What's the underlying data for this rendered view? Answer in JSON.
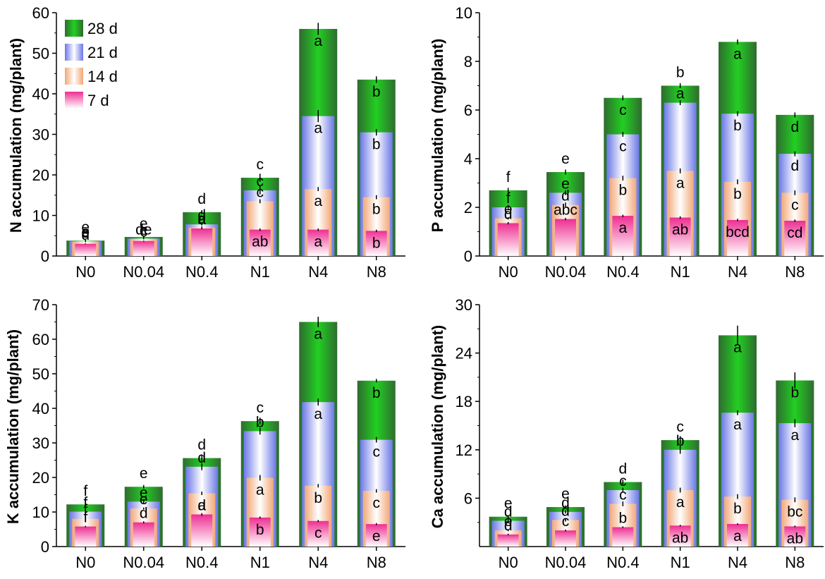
{
  "colors": {
    "d28_dark": "#2f6b2f",
    "d28_light": "#22d022",
    "d21_dark": "#6b78e6",
    "d21_light": "#ffffff",
    "d14_dark": "#f2a878",
    "d14_light": "#ffffff",
    "d7_dark": "#ee2f92",
    "d7_light": "#ffffff"
  },
  "legend": {
    "items": [
      {
        "label": "28 d",
        "stage": "d28"
      },
      {
        "label": "21 d",
        "stage": "d21"
      },
      {
        "label": "14 d",
        "stage": "d14"
      },
      {
        "label": "7 d",
        "stage": "d7"
      }
    ]
  },
  "chart_data": [
    {
      "type": "bar",
      "stacked": false,
      "title": "",
      "ylabel": "N accumulation (mg/plant)",
      "xlabel": "",
      "categories": [
        "N0",
        "N0.04",
        "N0.4",
        "N1",
        "N4",
        "N8"
      ],
      "ylim": [
        0,
        60
      ],
      "yticks": [
        0,
        10,
        20,
        30,
        40,
        50,
        60
      ],
      "series": [
        {
          "name": "28 d",
          "values": [
            3.8,
            4.7,
            10.8,
            19.3,
            56.0,
            43.5
          ],
          "errors": [
            0.2,
            0.2,
            0.5,
            1.0,
            1.5,
            0.8
          ],
          "letters": [
            "e",
            "e",
            "d",
            "c",
            "a",
            "b"
          ]
        },
        {
          "name": "21 d",
          "values": [
            3.7,
            4.3,
            7.8,
            16.2,
            34.5,
            30.5
          ],
          "errors": [
            0.2,
            0.2,
            0.3,
            1.0,
            1.5,
            0.8
          ],
          "letters": [
            "e",
            "de",
            "d",
            "c",
            "a",
            "b"
          ]
        },
        {
          "name": "14 d",
          "values": [
            3.5,
            4.2,
            7.0,
            13.5,
            16.5,
            14.5
          ],
          "errors": [
            0.1,
            0.1,
            0.3,
            0.5,
            0.5,
            0.5
          ],
          "letters": [
            "e",
            "e",
            "d",
            "c",
            "a",
            "b"
          ]
        },
        {
          "name": "7 d",
          "values": [
            3.0,
            3.7,
            6.8,
            6.5,
            6.5,
            6.2
          ],
          "errors": [
            0.1,
            0.1,
            0.2,
            0.3,
            0.3,
            0.3
          ],
          "letters": [
            "d",
            "c",
            "a",
            "ab",
            "a",
            "b"
          ]
        }
      ]
    },
    {
      "type": "bar",
      "stacked": false,
      "title": "",
      "ylabel": "P accumulation (mg/plant)",
      "xlabel": "",
      "categories": [
        "N0",
        "N0.04",
        "N0.4",
        "N1",
        "N4",
        "N8"
      ],
      "ylim": [
        0,
        10
      ],
      "yticks": [
        0,
        2,
        4,
        6,
        8,
        10
      ],
      "series": [
        {
          "name": "28 d",
          "values": [
            2.7,
            3.45,
            6.5,
            7.0,
            8.8,
            5.8
          ],
          "errors": [
            0.1,
            0.1,
            0.1,
            0.1,
            0.1,
            0.1
          ],
          "letters": [
            "f",
            "e",
            "c",
            "b",
            "a",
            "d"
          ]
        },
        {
          "name": "21 d",
          "values": [
            2.0,
            2.6,
            5.0,
            6.3,
            5.85,
            4.2
          ],
          "errors": [
            0.1,
            0.1,
            0.1,
            0.1,
            0.1,
            0.1
          ],
          "letters": [
            "f",
            "e",
            "c",
            "a",
            "b",
            "d"
          ]
        },
        {
          "name": "14 d",
          "values": [
            1.55,
            2.1,
            3.2,
            3.5,
            3.05,
            2.6
          ],
          "errors": [
            0.05,
            0.1,
            0.1,
            0.1,
            0.1,
            0.1
          ],
          "letters": [
            "e",
            "d",
            "b",
            "a",
            "b",
            "c"
          ]
        },
        {
          "name": "7 d",
          "values": [
            1.35,
            1.52,
            1.65,
            1.58,
            1.48,
            1.45
          ],
          "errors": [
            0.05,
            0.05,
            0.05,
            0.05,
            0.05,
            0.05
          ],
          "letters": [
            "d",
            "abc",
            "a",
            "ab",
            "bcd",
            "cd"
          ]
        }
      ]
    },
    {
      "type": "bar",
      "stacked": false,
      "title": "",
      "ylabel": "K accumulation (mg/plant)",
      "xlabel": "",
      "categories": [
        "N0",
        "N0.04",
        "N0.4",
        "N1",
        "N4",
        "N8"
      ],
      "ylim": [
        0,
        70
      ],
      "yticks": [
        0,
        10,
        20,
        30,
        40,
        50,
        60,
        70
      ],
      "series": [
        {
          "name": "28 d",
          "values": [
            12.2,
            17.3,
            25.6,
            36.3,
            65.0,
            48.0
          ],
          "errors": [
            0.5,
            0.5,
            1.0,
            1.0,
            1.5,
            0.5
          ],
          "letters": [
            "f",
            "e",
            "d",
            "c",
            "a",
            "b"
          ]
        },
        {
          "name": "21 d",
          "values": [
            10.1,
            13.0,
            23.1,
            33.4,
            41.8,
            30.9
          ],
          "errors": [
            0.5,
            0.5,
            1.0,
            1.0,
            1.0,
            0.8
          ],
          "letters": [
            "f",
            "e",
            "d",
            "b",
            "a",
            "c"
          ]
        },
        {
          "name": "14 d",
          "values": [
            8.0,
            11.0,
            15.4,
            19.9,
            17.6,
            16.1
          ],
          "errors": [
            0.3,
            0.3,
            0.5,
            0.8,
            0.5,
            0.5
          ],
          "letters": [
            "f",
            "e",
            "d",
            "a",
            "b",
            "c"
          ]
        },
        {
          "name": "7 d",
          "values": [
            5.8,
            7.0,
            9.3,
            8.4,
            7.4,
            6.5
          ],
          "errors": [
            0.2,
            0.3,
            0.4,
            0.3,
            0.3,
            0.3
          ],
          "letters": [
            "f",
            "d",
            "a",
            "b",
            "c",
            "e"
          ]
        }
      ]
    },
    {
      "type": "bar",
      "stacked": false,
      "title": "",
      "ylabel": "Ca accumulation (mg/plant)",
      "xlabel": "",
      "categories": [
        "N0",
        "N0.04",
        "N0.4",
        "N1",
        "N4",
        "N8"
      ],
      "ylim": [
        0,
        30
      ],
      "yticks": [
        6,
        12,
        18,
        24,
        30
      ],
      "series": [
        {
          "name": "28 d",
          "values": [
            3.7,
            4.9,
            8.0,
            13.2,
            26.2,
            20.6
          ],
          "errors": [
            0.2,
            0.2,
            0.3,
            0.5,
            1.2,
            1.0
          ],
          "letters": [
            "e",
            "e",
            "d",
            "c",
            "a",
            "b"
          ]
        },
        {
          "name": "21 d",
          "values": [
            3.2,
            4.3,
            7.0,
            12.0,
            16.6,
            15.3
          ],
          "errors": [
            0.2,
            0.2,
            0.3,
            0.5,
            0.3,
            0.5
          ],
          "letters": [
            "d",
            "d",
            "c",
            "b",
            "a",
            "a"
          ]
        },
        {
          "name": "14 d",
          "values": [
            2.0,
            3.3,
            5.3,
            7.0,
            6.2,
            5.8
          ],
          "errors": [
            0.1,
            0.2,
            0.3,
            0.3,
            0.3,
            0.3
          ],
          "letters": [
            "e",
            "d",
            "c",
            "a",
            "b",
            "bc"
          ]
        },
        {
          "name": "7 d",
          "values": [
            1.5,
            2.0,
            2.4,
            2.6,
            2.8,
            2.5
          ],
          "errors": [
            0.1,
            0.1,
            0.1,
            0.1,
            0.1,
            0.1
          ],
          "letters": [
            "d",
            "c",
            "b",
            "ab",
            "a",
            "ab"
          ]
        }
      ]
    }
  ]
}
